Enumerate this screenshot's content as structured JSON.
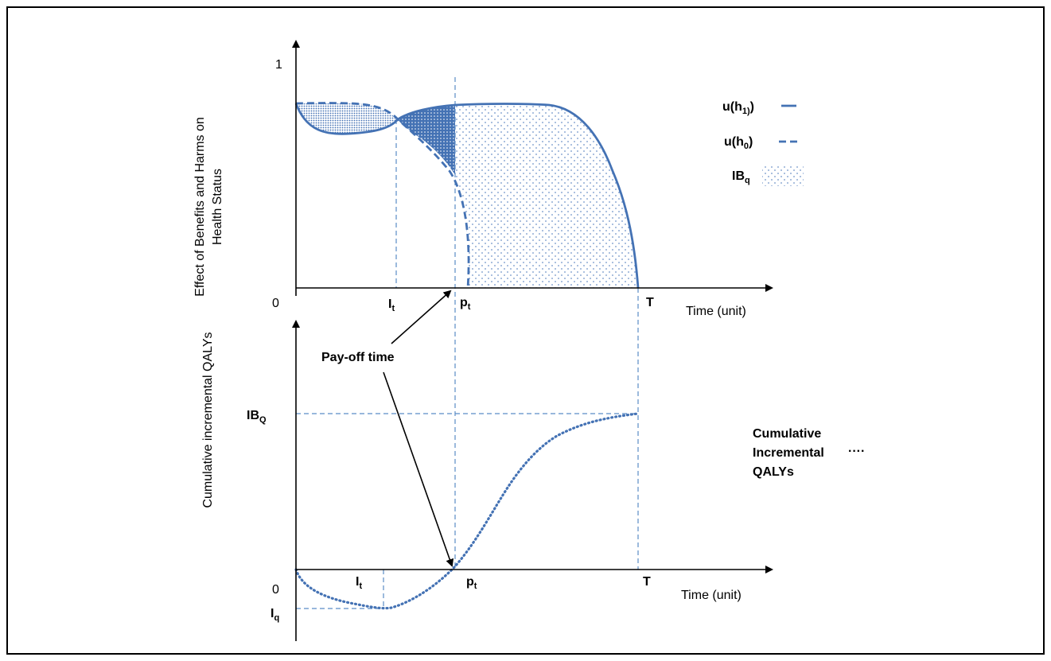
{
  "top_panel": {
    "y_axis_label_line1": "Effect of Benefits and Harms on",
    "y_axis_label_line2": "Health Status",
    "y_tick_top": "1",
    "origin": "0",
    "x_axis_label": "Time (unit)",
    "tick_lt_main": "I",
    "tick_lt_sub": "t",
    "tick_pt_main": "p",
    "tick_pt_sub": "t",
    "tick_T": "T"
  },
  "legend": {
    "u_h1_main": "u(h",
    "u_h1_sub": "1)",
    "u_h1_close": ")",
    "u_h0_main": "u(h",
    "u_h0_sub": "0",
    "u_h0_close": ")",
    "ibq_main": "IB",
    "ibq_sub": "q"
  },
  "annotation": {
    "payoff_label": "Pay-off time"
  },
  "bottom_panel": {
    "y_axis_label": "Cumulative incremental QALYs",
    "ibQ_main": "IB",
    "ibQ_sub": "Q",
    "iq_main": "I",
    "iq_sub": "q",
    "origin": "0",
    "x_axis_label": "Time (unit)",
    "tick_lt_main": "I",
    "tick_lt_sub": "t",
    "tick_pt_main": "p",
    "tick_pt_sub": "t",
    "tick_T": "T",
    "legend_line1": "Cumulative",
    "legend_line2": "Incremental",
    "legend_line3": "QALYs",
    "legend_marker": "····"
  },
  "colors": {
    "curve": "#4472b4",
    "guide": "#5b8cc6",
    "fill_dark": "#4472b4"
  }
}
